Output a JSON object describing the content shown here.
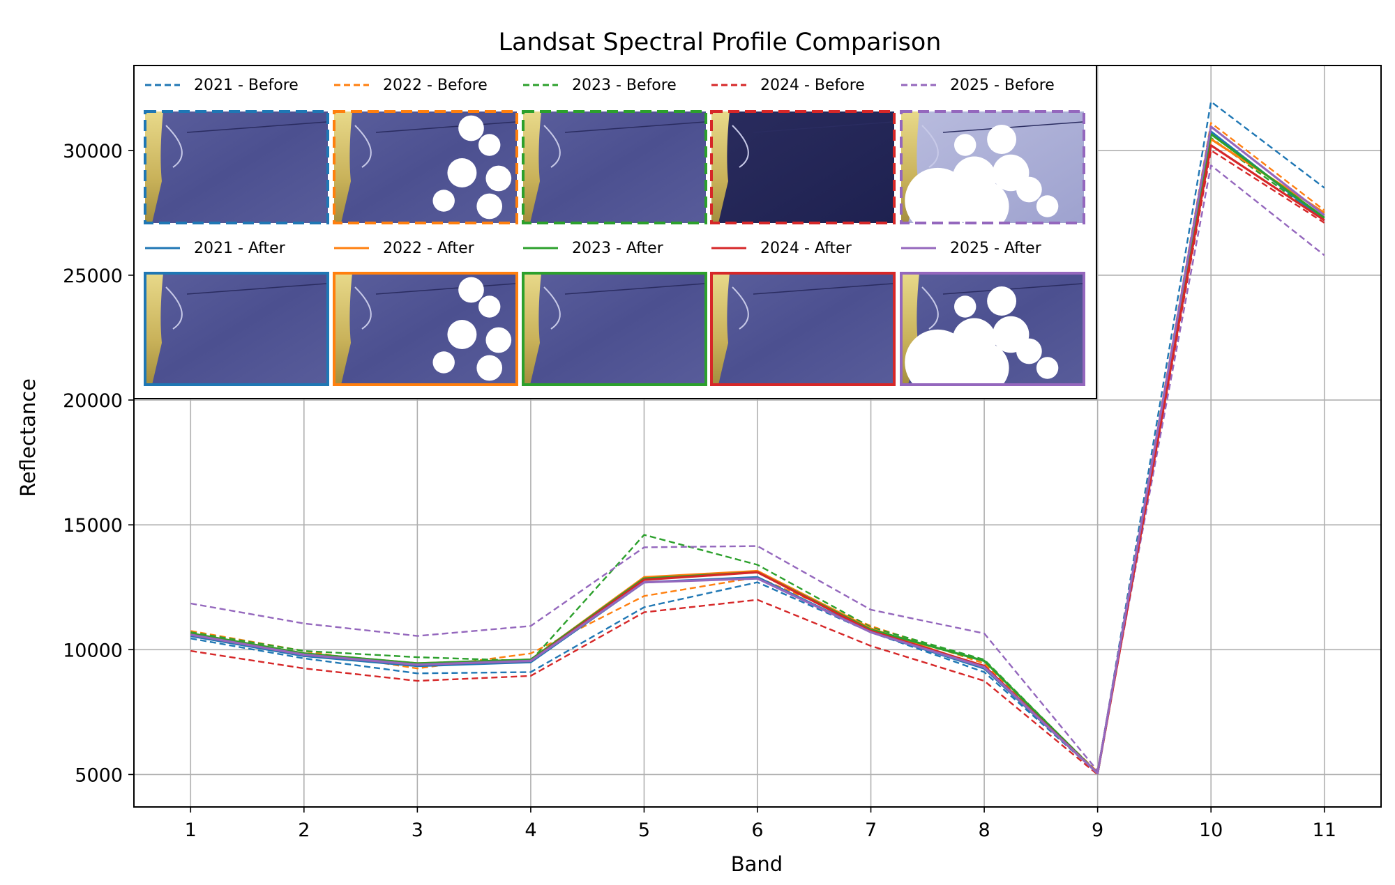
{
  "chart_data": {
    "type": "line",
    "title": "Landsat Spectral Profile Comparison",
    "xlabel": "Band",
    "ylabel": "Reflectance",
    "x": [
      1,
      2,
      3,
      4,
      5,
      6,
      7,
      8,
      9,
      10,
      11
    ],
    "xlim": [
      0.5,
      11.5
    ],
    "ylim": [
      3700,
      33400
    ],
    "yticks": [
      5000,
      10000,
      15000,
      20000,
      25000,
      30000
    ],
    "grid": true,
    "legend_position": "top-left",
    "series": [
      {
        "name": "2021 - Before",
        "style": "dashed",
        "color": "#1f77b4",
        "values": [
          10450,
          9650,
          9050,
          9100,
          11700,
          12700,
          10700,
          9100,
          5050,
          31950,
          28500
        ]
      },
      {
        "name": "2022 - Before",
        "style": "dashed",
        "color": "#ff7f0e",
        "values": [
          10750,
          9950,
          9250,
          9850,
          12150,
          12900,
          10950,
          9450,
          5100,
          31100,
          27600
        ]
      },
      {
        "name": "2023 - Before",
        "style": "dashed",
        "color": "#2ca02c",
        "values": [
          10700,
          9950,
          9700,
          9550,
          14600,
          13400,
          10900,
          9600,
          5050,
          30500,
          27200
        ]
      },
      {
        "name": "2024 - Before",
        "style": "dashed",
        "color": "#d62728",
        "values": [
          9950,
          9250,
          8750,
          8950,
          11500,
          12000,
          10150,
          8750,
          5000,
          30000,
          27100
        ]
      },
      {
        "name": "2025 - Before",
        "style": "dashed",
        "color": "#9467bd",
        "values": [
          11850,
          11050,
          10550,
          10950,
          14100,
          14150,
          11600,
          10650,
          5150,
          29400,
          25800
        ]
      },
      {
        "name": "2021 - After",
        "style": "solid",
        "color": "#1f77b4",
        "values": [
          10550,
          9750,
          9350,
          9500,
          12700,
          12900,
          10700,
          9250,
          5050,
          30750,
          27200
        ]
      },
      {
        "name": "2022 - After",
        "style": "solid",
        "color": "#ff7f0e",
        "values": [
          10650,
          9850,
          9450,
          9600,
          12900,
          13150,
          10850,
          9300,
          5050,
          30450,
          27500
        ]
      },
      {
        "name": "2023 - After",
        "style": "solid",
        "color": "#2ca02c",
        "values": [
          10650,
          9850,
          9450,
          9600,
          12850,
          13100,
          10800,
          9550,
          5050,
          30650,
          27300
        ]
      },
      {
        "name": "2024 - After",
        "style": "solid",
        "color": "#d62728",
        "values": [
          10600,
          9800,
          9400,
          9550,
          12800,
          13100,
          10750,
          9350,
          5050,
          30200,
          27200
        ]
      },
      {
        "name": "2025 - After",
        "style": "solid",
        "color": "#9467bd",
        "values": [
          10600,
          9800,
          9400,
          9550,
          12700,
          12850,
          10700,
          9300,
          5050,
          30950,
          27400
        ]
      }
    ]
  },
  "legend": {
    "before": [
      {
        "label": "2021 - Before",
        "color": "#1f77b4",
        "cloud_cover": 0
      },
      {
        "label": "2022 - Before",
        "color": "#ff7f0e",
        "cloud_cover": 2
      },
      {
        "label": "2023 - Before",
        "color": "#2ca02c",
        "cloud_cover": 0
      },
      {
        "label": "2024 - Before",
        "color": "#d62728",
        "cloud_cover": 0
      },
      {
        "label": "2025 - Before",
        "color": "#9467bd",
        "cloud_cover": 1
      }
    ],
    "after": [
      {
        "label": "2021 - After",
        "color": "#1f77b4",
        "cloud_cover": 0
      },
      {
        "label": "2022 - After",
        "color": "#ff7f0e",
        "cloud_cover": 2
      },
      {
        "label": "2023 - After",
        "color": "#2ca02c",
        "cloud_cover": 0
      },
      {
        "label": "2024 - After",
        "color": "#d62728",
        "cloud_cover": 0
      },
      {
        "label": "2025 - After",
        "color": "#9467bd",
        "cloud_cover": 1
      }
    ]
  }
}
